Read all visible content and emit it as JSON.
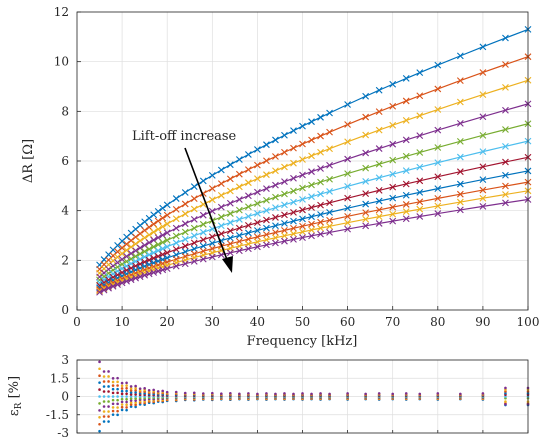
{
  "chart_data": [
    {
      "type": "line",
      "markers": "x",
      "xlabel": "Frequency [kHz]",
      "ylabel": "ΔR [Ω]",
      "xlim": [
        0,
        100
      ],
      "ylim": [
        0,
        12
      ],
      "xticks": [
        "0",
        "10",
        "20",
        "30",
        "40",
        "50",
        "60",
        "70",
        "80",
        "90",
        "100"
      ],
      "yticks": [
        "0",
        "2",
        "4",
        "6",
        "8",
        "10",
        "12"
      ],
      "grid": true,
      "annotation": "Lift-off increase",
      "x": [
        5,
        6,
        7,
        8,
        9,
        10,
        11,
        12,
        13,
        14,
        15,
        16,
        17,
        18,
        19,
        20,
        22,
        24,
        26,
        28,
        30,
        32,
        34,
        36,
        38,
        40,
        42,
        44,
        46,
        48,
        50,
        52,
        54,
        56,
        60,
        64,
        67,
        70,
        73,
        76,
        80,
        85,
        90,
        95,
        100
      ],
      "series": [
        {
          "color": "#0072bd",
          "r": 11.3
        },
        {
          "color": "#d95319",
          "r": 10.2
        },
        {
          "color": "#edb120",
          "r": 9.25
        },
        {
          "color": "#7e2f8e",
          "r": 8.3
        },
        {
          "color": "#77ac30",
          "r": 7.5
        },
        {
          "color": "#4dbeee",
          "r": 6.8
        },
        {
          "color": "#a2142f",
          "r": 6.15
        },
        {
          "color": "#0072bd",
          "r": 5.6
        },
        {
          "color": "#d95319",
          "r": 5.15
        },
        {
          "color": "#edb120",
          "r": 4.8
        },
        {
          "color": "#7e2f8e",
          "r": 4.45
        }
      ],
      "series_note": "each series y = r * (x/100)^0.61 approximately; r is value at 100 kHz"
    },
    {
      "type": "scatter",
      "ylabel": "ε_R [%]",
      "xlim": [
        0,
        100
      ],
      "ylim": [
        -3,
        3
      ],
      "yticks": [
        "3",
        "1.5",
        "0",
        "-1.5",
        "-3"
      ],
      "grid": true,
      "x": [
        5,
        6,
        7,
        8,
        9,
        10,
        11,
        12,
        13,
        14,
        15,
        16,
        17,
        18,
        19,
        20,
        22,
        24,
        26,
        28,
        30,
        32,
        34,
        36,
        38,
        40,
        42,
        44,
        46,
        48,
        50,
        52,
        54,
        56,
        60,
        64,
        67,
        70,
        73,
        76,
        80,
        85,
        90,
        95,
        100
      ]
    }
  ]
}
